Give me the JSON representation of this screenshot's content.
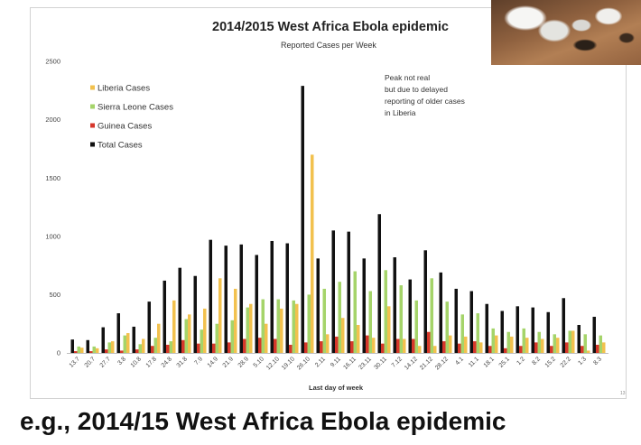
{
  "slide": {
    "caption": "e.g., 2014/15 West Africa Ebola epidemic",
    "page_number": "13"
  },
  "chart_data": {
    "type": "bar",
    "title": "2014/2015 West Africa Ebola epidemic",
    "subtitle": "Reported Cases per Week",
    "xlabel": "Last day of week",
    "ylim": [
      0,
      2500
    ],
    "yticks": [
      0,
      500,
      1000,
      1500,
      2000,
      2500
    ],
    "grid": false,
    "legend": "top-left",
    "categories": [
      "13.7",
      "20.7",
      "27.7",
      "3.8",
      "10.8",
      "17.8",
      "24.8",
      "31.8",
      "7.9",
      "14.9",
      "21.9",
      "28.9",
      "5.10",
      "12.10",
      "19.10",
      "26.10",
      "2.11",
      "9.11",
      "16.11",
      "23.11",
      "30.11",
      "7.12",
      "14.12",
      "21.12",
      "28.12",
      "4.1",
      "11.1",
      "18.1",
      "25.1",
      "1.2",
      "8.2",
      "15.2",
      "22.2",
      "1.3",
      "8.3"
    ],
    "series": [
      {
        "name": "Liberia Cases",
        "color": "#f2c14e",
        "values": [
          45,
          40,
          100,
          170,
          120,
          250,
          450,
          330,
          380,
          640,
          550,
          420,
          250,
          380,
          420,
          1700,
          160,
          300,
          240,
          130,
          400,
          120,
          60,
          60,
          150,
          140,
          90,
          150,
          140,
          130,
          120,
          130,
          190,
          20,
          90
        ]
      },
      {
        "name": "Sierra Leone Cases",
        "color": "#a5d46a",
        "values": [
          55,
          55,
          90,
          150,
          75,
          130,
          100,
          290,
          200,
          250,
          280,
          390,
          460,
          460,
          450,
          500,
          550,
          610,
          700,
          530,
          710,
          580,
          450,
          640,
          440,
          330,
          340,
          210,
          180,
          210,
          180,
          160,
          190,
          160,
          150
        ]
      },
      {
        "name": "Guinea Cases",
        "color": "#d6372b",
        "values": [
          15,
          15,
          30,
          20,
          30,
          60,
          70,
          110,
          80,
          80,
          90,
          120,
          130,
          120,
          70,
          90,
          100,
          140,
          100,
          150,
          80,
          120,
          120,
          180,
          100,
          80,
          100,
          60,
          40,
          60,
          90,
          60,
          90,
          60,
          70
        ]
      },
      {
        "name": "Total Cases",
        "color": "#111111",
        "values": [
          115,
          110,
          220,
          340,
          225,
          440,
          620,
          730,
          660,
          970,
          920,
          930,
          840,
          960,
          940,
          2290,
          810,
          1050,
          1040,
          810,
          1190,
          820,
          630,
          880,
          690,
          550,
          530,
          420,
          360,
          400,
          390,
          350,
          470,
          240,
          310
        ]
      }
    ],
    "annotation": [
      "Peak not real",
      "but due to delayed",
      "reporting of older cases",
      "in Liberia"
    ]
  }
}
